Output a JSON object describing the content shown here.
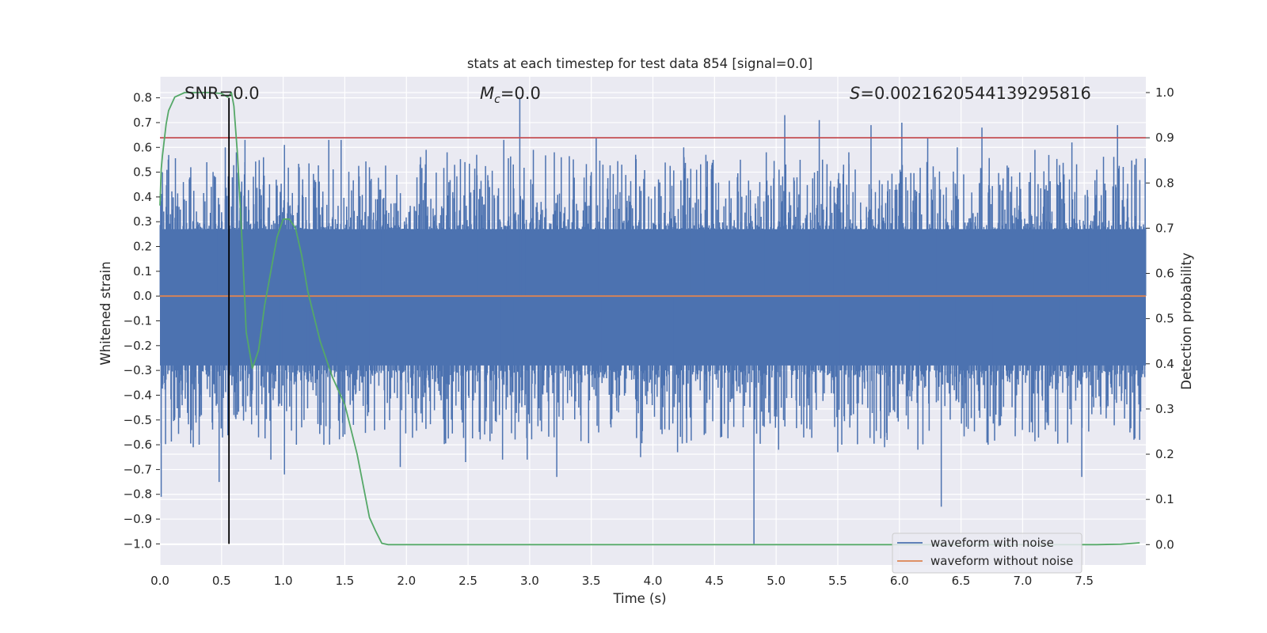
{
  "chart_data": {
    "type": "line",
    "title": "stats at each timestep for test data 854 [signal=0.0]",
    "xlabel": "Time (s)",
    "ylabel": "Whitened strain",
    "ylabel_right": "Detection probability",
    "xlim": [
      0.0,
      8.0
    ],
    "ylim": [
      -1.085,
      0.885
    ],
    "ylim_right": [
      -0.045,
      1.035
    ],
    "xticks": [
      "0.0",
      "0.5",
      "1.0",
      "1.5",
      "2.0",
      "2.5",
      "3.0",
      "3.5",
      "4.0",
      "4.5",
      "5.0",
      "5.5",
      "6.0",
      "6.5",
      "7.0",
      "7.5"
    ],
    "yticks": [
      "0.8",
      "0.7",
      "0.6",
      "0.5",
      "0.4",
      "0.3",
      "0.2",
      "0.1",
      "0.0",
      "-0.1",
      "-0.2",
      "-0.3",
      "-0.4",
      "-0.5",
      "-0.6",
      "-0.7",
      "-0.8",
      "-0.9",
      "-1.0"
    ],
    "yticks_right": [
      "1.0",
      "0.9",
      "0.8",
      "0.7",
      "0.6",
      "0.5",
      "0.4",
      "0.3",
      "0.2",
      "0.1",
      "0.0"
    ],
    "annotations": {
      "snr": "SNR=0.0",
      "mc_symbol": "M",
      "mc_sub": "c",
      "mc_value": "=0.0",
      "s_symbol": "S",
      "s_value": "=0.002162054413929581​6"
    },
    "grid": true,
    "legend_position": "lower-right",
    "series": [
      {
        "name": "waveform with noise",
        "color": "#4c72b0",
        "axis": "left",
        "envelope_upper": 0.27,
        "envelope_lower": -0.28,
        "peaks": [
          [
            0.02,
            0.5
          ],
          [
            0.05,
            0.36
          ],
          [
            0.19,
            0.46
          ],
          [
            0.25,
            0.52
          ],
          [
            0.38,
            0.54
          ],
          [
            0.45,
            0.48
          ],
          [
            0.53,
            0.6
          ],
          [
            0.62,
            0.58
          ],
          [
            0.69,
            0.63
          ],
          [
            0.84,
            0.56
          ],
          [
            1.01,
            0.61
          ],
          [
            1.13,
            0.52
          ],
          [
            1.37,
            0.63
          ],
          [
            1.47,
            0.63
          ],
          [
            1.7,
            0.52
          ],
          [
            2.16,
            0.59
          ],
          [
            2.33,
            0.58
          ],
          [
            2.57,
            0.57
          ],
          [
            2.79,
            0.63
          ],
          [
            2.92,
            0.8
          ],
          [
            3.03,
            0.59
          ],
          [
            3.2,
            0.58
          ],
          [
            3.54,
            0.64
          ],
          [
            3.86,
            0.57
          ],
          [
            4.25,
            0.6
          ],
          [
            4.43,
            0.57
          ],
          [
            4.71,
            0.55
          ],
          [
            4.92,
            0.58
          ],
          [
            5.07,
            0.73
          ],
          [
            5.35,
            0.71
          ],
          [
            5.59,
            0.58
          ],
          [
            5.77,
            0.69
          ],
          [
            6.02,
            0.7
          ],
          [
            6.23,
            0.64
          ],
          [
            6.47,
            0.6
          ],
          [
            6.67,
            0.68
          ],
          [
            7.1,
            0.59
          ],
          [
            7.4,
            0.62
          ],
          [
            7.77,
            0.69
          ],
          [
            7.91,
            0.53
          ]
        ],
        "troughs": [
          [
            0.01,
            -0.81
          ],
          [
            0.12,
            -0.49
          ],
          [
            0.27,
            -0.61
          ],
          [
            0.48,
            -0.75
          ],
          [
            0.6,
            -0.48
          ],
          [
            0.8,
            -0.57
          ],
          [
            0.9,
            -0.66
          ],
          [
            1.01,
            -0.72
          ],
          [
            1.15,
            -0.53
          ],
          [
            1.33,
            -0.6
          ],
          [
            1.57,
            -0.52
          ],
          [
            1.95,
            -0.69
          ],
          [
            2.48,
            -0.67
          ],
          [
            2.78,
            -0.66
          ],
          [
            2.98,
            -0.66
          ],
          [
            3.22,
            -0.73
          ],
          [
            3.56,
            -0.55
          ],
          [
            3.9,
            -0.65
          ],
          [
            4.2,
            -0.63
          ],
          [
            4.55,
            -0.57
          ],
          [
            4.82,
            -1.0
          ],
          [
            5.02,
            -0.62
          ],
          [
            5.5,
            -0.63
          ],
          [
            5.88,
            -0.61
          ],
          [
            6.15,
            -0.62
          ],
          [
            6.34,
            -0.85
          ],
          [
            6.72,
            -0.6
          ],
          [
            7.08,
            -0.55
          ],
          [
            7.48,
            -0.73
          ],
          [
            7.95,
            -0.58
          ]
        ]
      },
      {
        "name": "waveform without noise",
        "color": "#dd8452",
        "axis": "left",
        "x": [
          0.0,
          8.0
        ],
        "y": [
          0.0,
          0.0
        ]
      },
      {
        "color": "#55a868",
        "axis": "right",
        "x": [
          0.0,
          0.01,
          0.02,
          0.05,
          0.07,
          0.12,
          0.2,
          0.3,
          0.4,
          0.5,
          0.55,
          0.58,
          0.6,
          0.63,
          0.67,
          0.7,
          0.75,
          0.8,
          0.85,
          0.95,
          1.0,
          1.05,
          1.1,
          1.15,
          1.2,
          1.3,
          1.4,
          1.5,
          1.6,
          1.7,
          1.75,
          1.8,
          1.85,
          1.9,
          2.0,
          3.0,
          4.0,
          5.0,
          6.0,
          7.0,
          7.6,
          7.8,
          7.95
        ],
        "y": [
          0.75,
          0.83,
          0.86,
          0.93,
          0.96,
          0.99,
          1.0,
          1.0,
          1.0,
          0.998,
          0.99,
          1.0,
          0.97,
          0.86,
          0.65,
          0.47,
          0.39,
          0.43,
          0.53,
          0.68,
          0.72,
          0.72,
          0.7,
          0.64,
          0.56,
          0.45,
          0.37,
          0.31,
          0.2,
          0.06,
          0.03,
          0.003,
          0.0,
          0.0,
          0.0,
          0.0,
          0.0,
          0.0,
          0.0,
          0.0,
          0.0,
          0.001,
          0.004
        ]
      }
    ],
    "threshold": {
      "color": "#c44e52",
      "axis": "right",
      "value": 0.9
    },
    "marker_line": {
      "color": "#000000",
      "x": 0.56
    }
  }
}
